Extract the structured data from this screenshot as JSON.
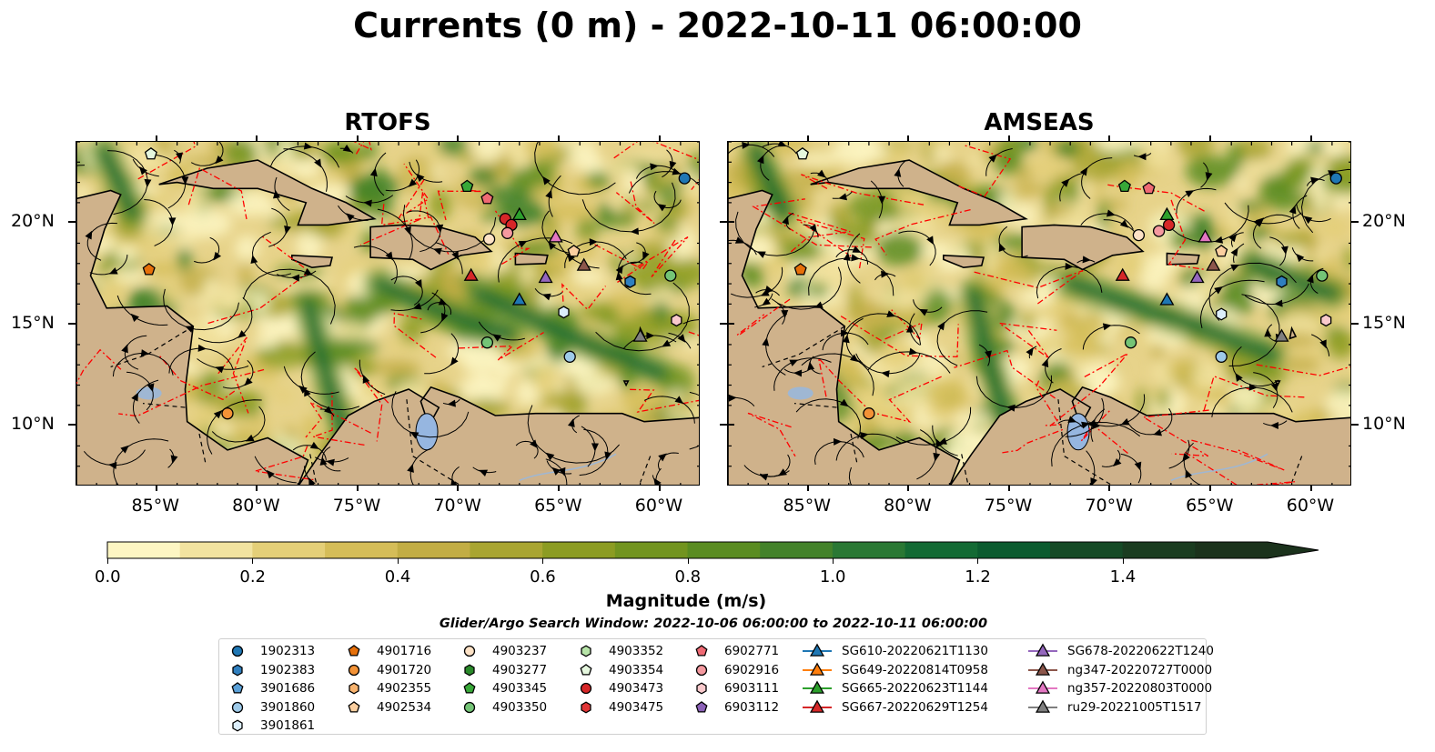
{
  "title": "Currents (0 m) - 2022-10-11 06:00:00",
  "panels": [
    {
      "title": "RTOFS"
    },
    {
      "title": "AMSEAS"
    }
  ],
  "lon_ticks": [
    "85°W",
    "80°W",
    "75°W",
    "70°W",
    "65°W",
    "60°W"
  ],
  "lat_ticks": [
    "20°N",
    "15°N",
    "10°N"
  ],
  "colorbar": {
    "label": "Magnitude (m/s)",
    "ticks": [
      "0.0",
      "0.2",
      "0.4",
      "0.6",
      "0.8",
      "1.0",
      "1.2",
      "1.4"
    ],
    "colors": [
      "#fdf6c3",
      "#f2e3a0",
      "#e4cf78",
      "#d5bd58",
      "#c2ad44",
      "#a9a531",
      "#8c9c22",
      "#72941f",
      "#5a8c21",
      "#43822a",
      "#2a7834",
      "#136a34",
      "#0b5b2f",
      "#154a26",
      "#1a3c20",
      "#1b321c"
    ],
    "extend": "max"
  },
  "search_window": "Glider/Argo Search Window: 2022-10-06 06:00:00 to 2022-10-11 06:00:00",
  "legend": [
    {
      "label": "1902313",
      "marker": "circle",
      "color": "#1f77b4"
    },
    {
      "label": "1902383",
      "marker": "hexagon",
      "color": "#2f7fbf"
    },
    {
      "label": "3901686",
      "marker": "pentagon",
      "color": "#5aa0d8"
    },
    {
      "label": "3901860",
      "marker": "circle",
      "color": "#9ecae9"
    },
    {
      "label": "3901861",
      "marker": "hexagon",
      "color": "#dceefb"
    },
    {
      "label": "4901716",
      "marker": "pentagon",
      "color": "#e6700a"
    },
    {
      "label": "4901720",
      "marker": "circle",
      "color": "#f39236"
    },
    {
      "label": "4902355",
      "marker": "hexagon",
      "color": "#f8b36e"
    },
    {
      "label": "4902534",
      "marker": "pentagon",
      "color": "#fbcfa0"
    },
    {
      "label": "4903237",
      "marker": "circle",
      "color": "#fde2c6"
    },
    {
      "label": "4903277",
      "marker": "hexagon",
      "color": "#2a8a2a"
    },
    {
      "label": "4903345",
      "marker": "pentagon",
      "color": "#38a838"
    },
    {
      "label": "4903350",
      "marker": "circle",
      "color": "#74c476"
    },
    {
      "label": "4903352",
      "marker": "hexagon",
      "color": "#b7e4a8"
    },
    {
      "label": "4903354",
      "marker": "pentagon",
      "color": "#e5f7de"
    },
    {
      "label": "4903473",
      "marker": "circle",
      "color": "#d62728"
    },
    {
      "label": "4903475",
      "marker": "hexagon",
      "color": "#e03536"
    },
    {
      "label": "6902771",
      "marker": "pentagon",
      "color": "#ef6a74"
    },
    {
      "label": "6902916",
      "marker": "circle",
      "color": "#f4999f"
    },
    {
      "label": "6903111",
      "marker": "hexagon",
      "color": "#f9c9cc"
    },
    {
      "label": "6903112",
      "marker": "pentagon",
      "color": "#8c62b8"
    },
    {
      "label": "SG610-20220621T1130",
      "marker": "triangle",
      "color": "#1f77b4"
    },
    {
      "label": "SG649-20220814T0958",
      "marker": "triangle",
      "color": "#ff7f0e"
    },
    {
      "label": "SG665-20220623T1144",
      "marker": "triangle",
      "color": "#2ca02c"
    },
    {
      "label": "SG667-20220629T1254",
      "marker": "triangle",
      "color": "#d62728"
    },
    {
      "label": "SG678-20220622T1240",
      "marker": "triangle",
      "color": "#9467bd"
    },
    {
      "label": "ng347-20220727T0000",
      "marker": "triangle",
      "color": "#8c564b"
    },
    {
      "label": "ng357-20220803T0000",
      "marker": "triangle",
      "color": "#e377c2"
    },
    {
      "label": "ru29-20221005T1517",
      "marker": "triangle",
      "color": "#7f7f7f"
    }
  ],
  "map_colors": {
    "land": "#cfb28b",
    "ocean_blank": "#96b6e0",
    "eez": "#ff0000",
    "rivers": "#9fb7d3"
  }
}
